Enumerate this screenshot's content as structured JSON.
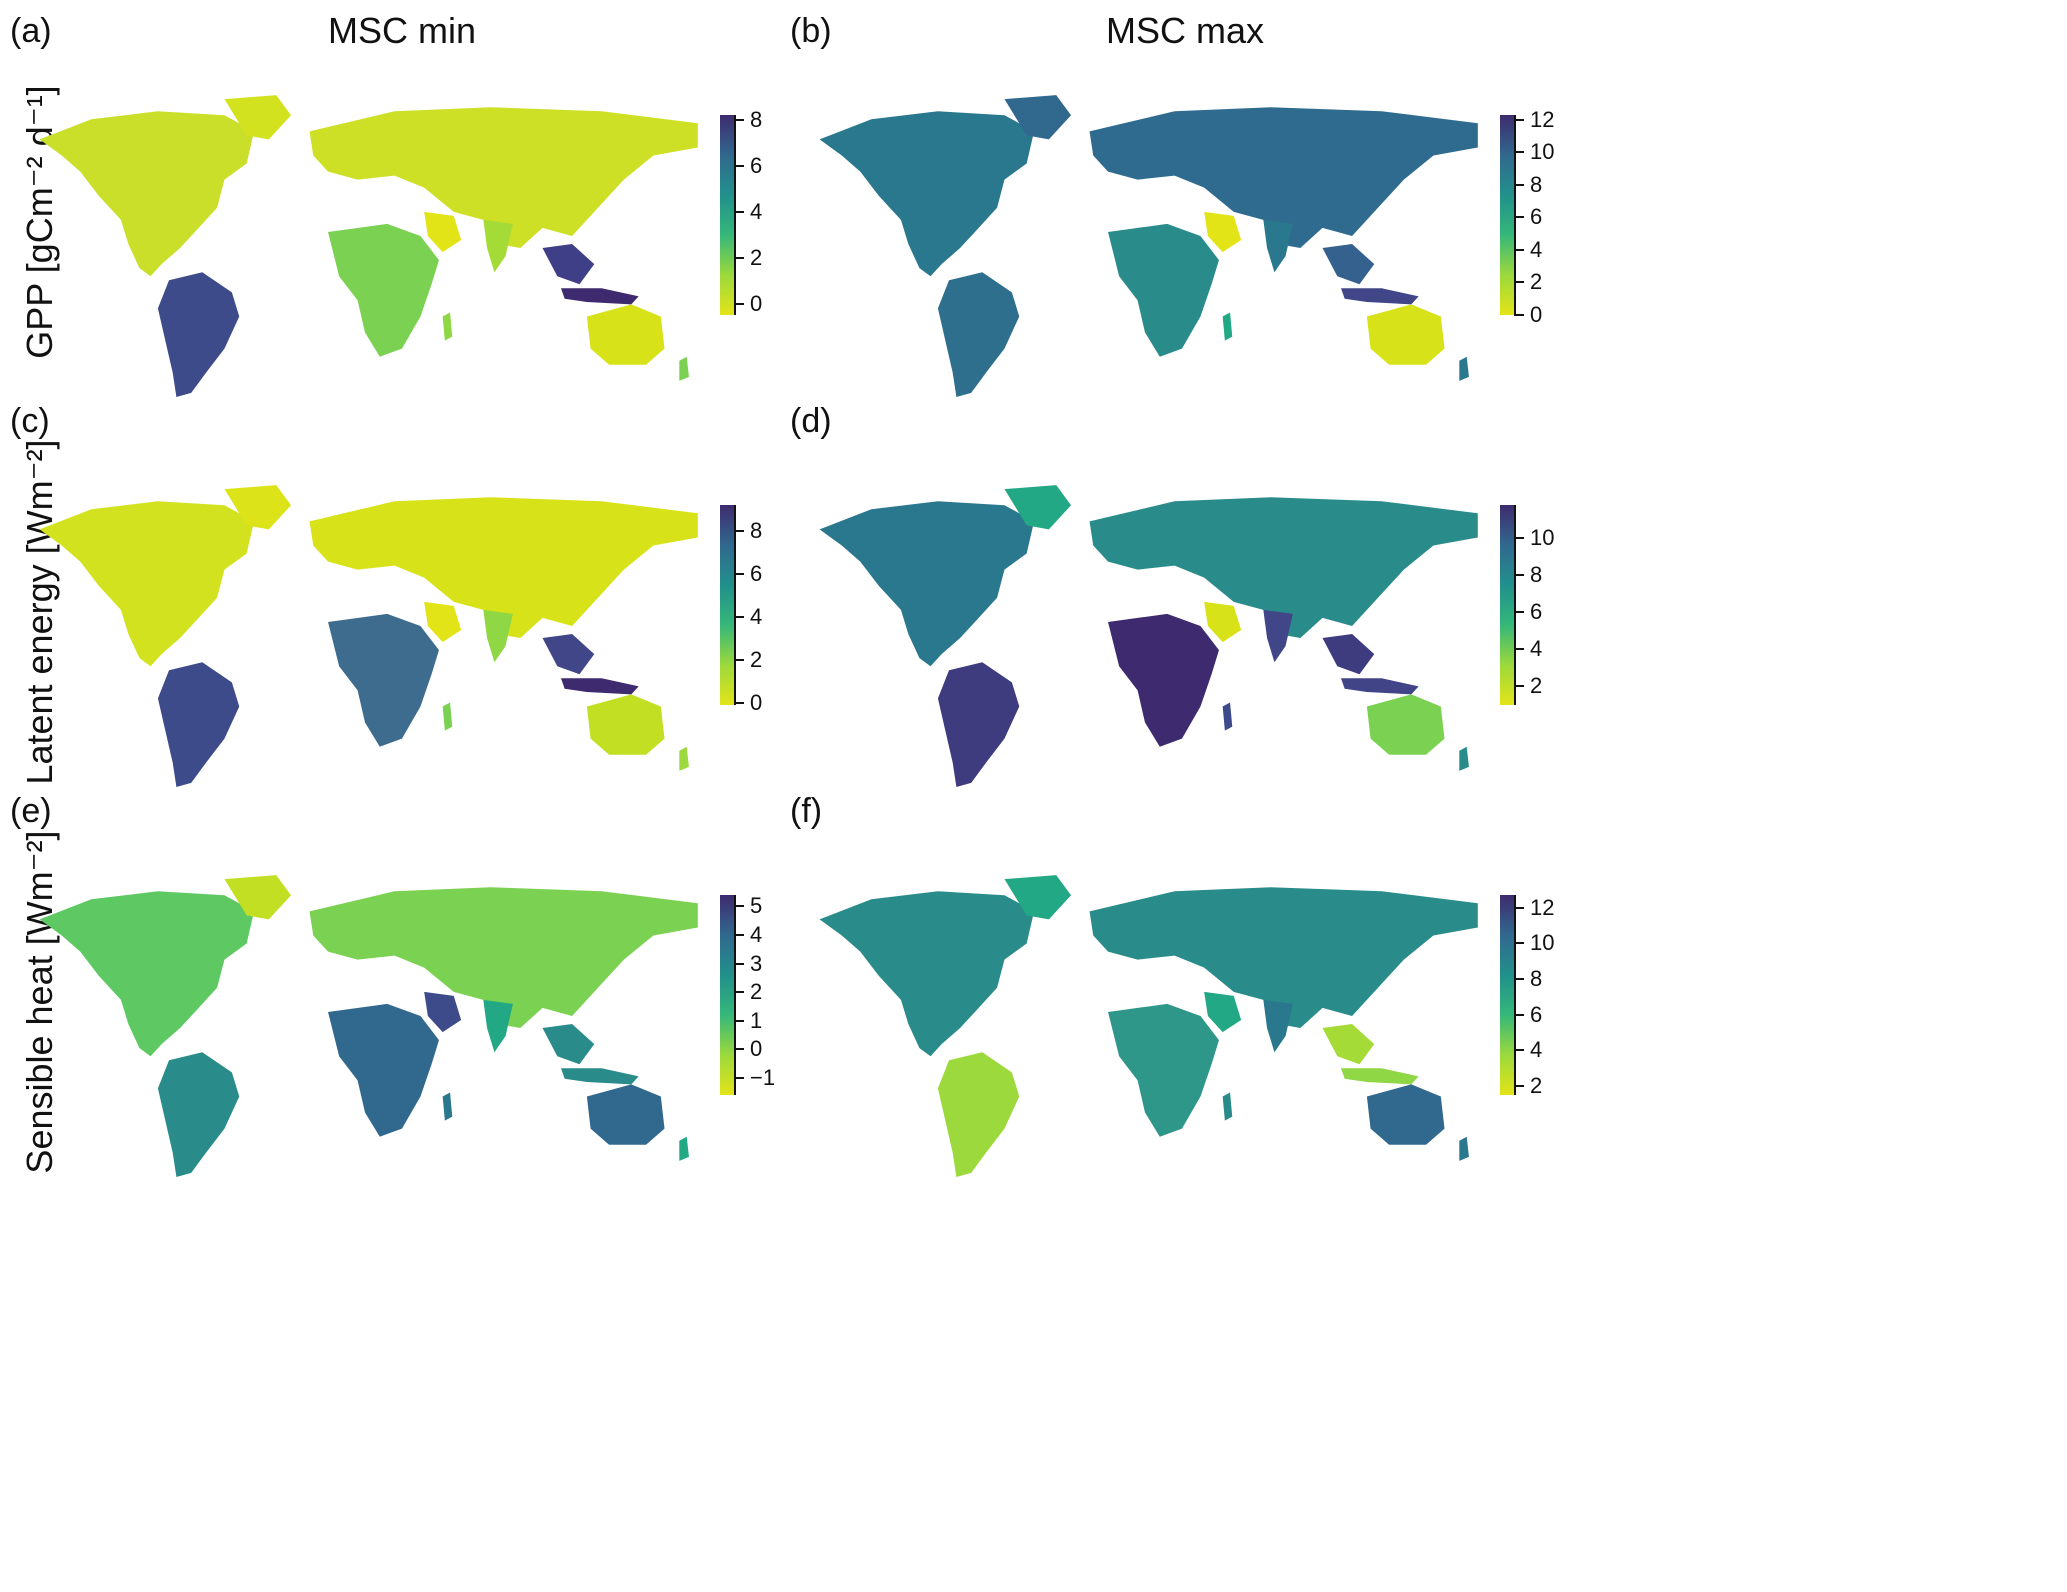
{
  "columns": [
    {
      "title": "MSC min"
    },
    {
      "title": "MSC max"
    }
  ],
  "rows": [
    {
      "label": "GPP [gCm⁻² d⁻¹]"
    },
    {
      "label": "Latent energy [Wm⁻²]"
    },
    {
      "label": "Sensible heat [Wm⁻²]"
    }
  ],
  "panels": [
    {
      "tag": "(a)",
      "colorbar": {
        "ticks": [
          "8",
          "6",
          "4",
          "2",
          "0"
        ],
        "range": [
          -0.5,
          8.2
        ],
        "tick_values": [
          8,
          6,
          4,
          2,
          0
        ]
      }
    },
    {
      "tag": "(b)",
      "colorbar": {
        "ticks": [
          "12",
          "10",
          "8",
          "6",
          "4",
          "2",
          "0"
        ],
        "range": [
          0,
          12.3
        ],
        "tick_values": [
          12,
          10,
          8,
          6,
          4,
          2,
          0
        ]
      }
    },
    {
      "tag": "(c)",
      "colorbar": {
        "ticks": [
          "8",
          "6",
          "4",
          "2",
          "0"
        ],
        "range": [
          -0.1,
          9.2
        ],
        "tick_values": [
          8,
          6,
          4,
          2,
          0
        ]
      }
    },
    {
      "tag": "(d)",
      "colorbar": {
        "ticks": [
          "10",
          "8",
          "6",
          "4",
          "2"
        ],
        "range": [
          1.0,
          11.8
        ],
        "tick_values": [
          10,
          8,
          6,
          4,
          2
        ]
      }
    },
    {
      "tag": "(e)",
      "colorbar": {
        "ticks": [
          "5",
          "4",
          "3",
          "2",
          "1",
          "0",
          "−1"
        ],
        "range": [
          -1.6,
          5.4
        ],
        "tick_values": [
          5,
          4,
          3,
          2,
          1,
          0,
          -1
        ]
      }
    },
    {
      "tag": "(f)",
      "colorbar": {
        "ticks": [
          "12",
          "10",
          "8",
          "6",
          "4",
          "2"
        ],
        "range": [
          1.5,
          12.7
        ],
        "tick_values": [
          12,
          10,
          8,
          6,
          4,
          2
        ]
      }
    }
  ],
  "colors": {
    "viridis_low": "#E3E418",
    "viridis_mid_low": "#7FD34E",
    "viridis_mid": "#22A884",
    "viridis_mid_high": "#2A788E",
    "viridis_high": "#414487",
    "viridis_top": "#3E2A6E"
  }
}
